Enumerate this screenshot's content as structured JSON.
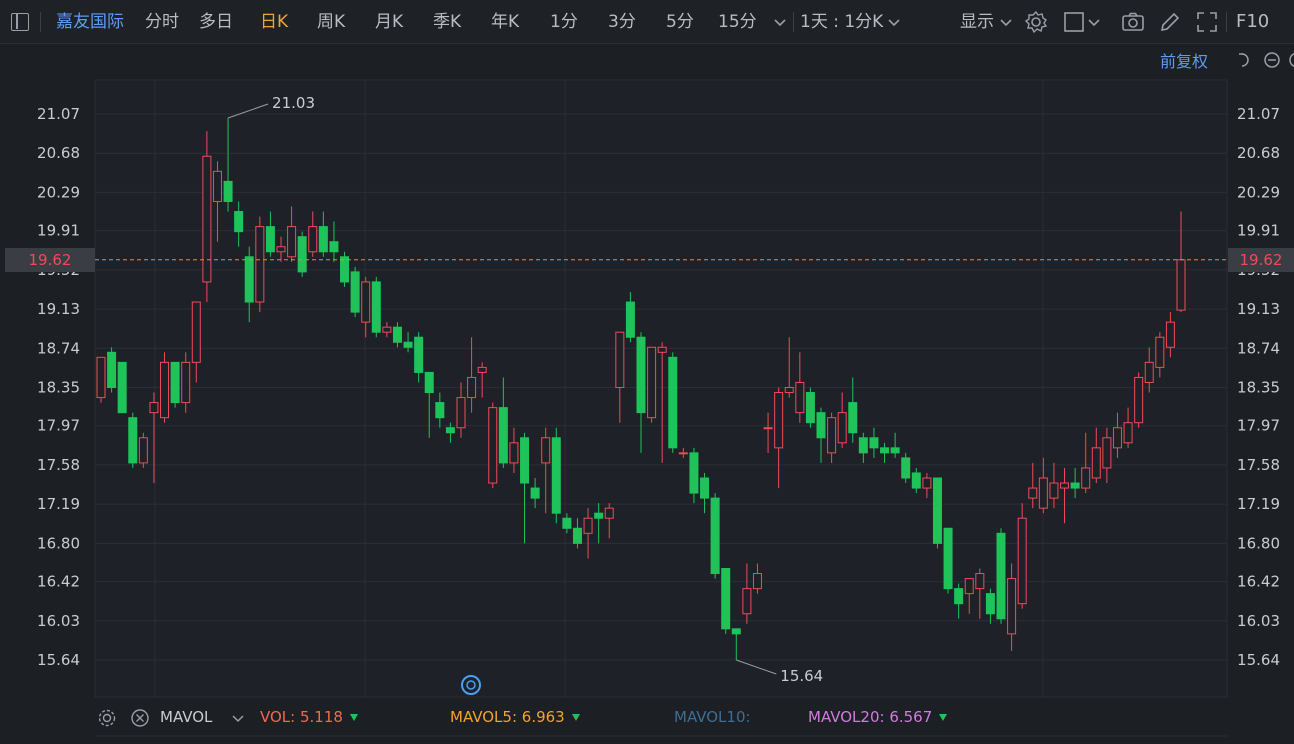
{
  "toolbar": {
    "stock_name": "嘉友国际",
    "tabs": [
      "分时",
      "多日",
      "日K",
      "周K",
      "月K",
      "季K",
      "年K",
      "1分",
      "3分",
      "5分",
      "15分"
    ],
    "active_tab": "日K",
    "period_select": "1天 : 1分K",
    "display_label": "显示",
    "f10_label": "F10"
  },
  "adjust_label": "前复权",
  "chart": {
    "y_ticks": [
      "21.07",
      "20.68",
      "20.29",
      "19.91",
      "19.52",
      "19.13",
      "18.74",
      "18.35",
      "17.97",
      "17.58",
      "17.19",
      "16.80",
      "16.42",
      "16.03",
      "15.64"
    ],
    "current_price": "19.62",
    "high_label": "21.03",
    "low_label": "15.64",
    "colors": {
      "up": "#f24957",
      "down": "#1fc35a",
      "background": "#1c1f24",
      "grid": "#2a2e35"
    }
  },
  "chart_data": {
    "type": "candlestick",
    "y_range": [
      15.45,
      21.25
    ],
    "candles": [
      {
        "o": 18.25,
        "c": 18.65,
        "h": 18.65,
        "l": 18.2
      },
      {
        "o": 18.7,
        "c": 18.35,
        "h": 18.75,
        "l": 18.3
      },
      {
        "o": 18.6,
        "c": 18.1,
        "h": 18.6,
        "l": 18.1
      },
      {
        "o": 18.05,
        "c": 17.6,
        "h": 18.1,
        "l": 17.55
      },
      {
        "o": 17.6,
        "c": 17.85,
        "h": 17.9,
        "l": 17.55
      },
      {
        "o": 18.1,
        "c": 18.2,
        "h": 18.3,
        "l": 17.4
      },
      {
        "o": 18.05,
        "c": 18.6,
        "h": 18.7,
        "l": 18.0
      },
      {
        "o": 18.6,
        "c": 18.2,
        "h": 18.6,
        "l": 18.15
      },
      {
        "o": 18.2,
        "c": 18.6,
        "h": 18.7,
        "l": 18.1
      },
      {
        "o": 18.6,
        "c": 19.2,
        "h": 19.2,
        "l": 18.4
      },
      {
        "o": 19.4,
        "c": 20.65,
        "h": 20.9,
        "l": 19.2
      },
      {
        "o": 20.2,
        "c": 20.5,
        "h": 20.6,
        "l": 19.8
      },
      {
        "o": 20.4,
        "c": 20.2,
        "h": 21.03,
        "l": 20.1
      },
      {
        "o": 20.1,
        "c": 19.9,
        "h": 20.2,
        "l": 19.75
      },
      {
        "o": 19.65,
        "c": 19.2,
        "h": 19.75,
        "l": 19.0
      },
      {
        "o": 19.2,
        "c": 19.95,
        "h": 20.05,
        "l": 19.1
      },
      {
        "o": 19.95,
        "c": 19.7,
        "h": 20.1,
        "l": 19.65
      },
      {
        "o": 19.7,
        "c": 19.75,
        "h": 19.85,
        "l": 19.6
      },
      {
        "o": 19.65,
        "c": 19.95,
        "h": 20.15,
        "l": 19.6
      },
      {
        "o": 19.85,
        "c": 19.5,
        "h": 19.9,
        "l": 19.45
      },
      {
        "o": 19.7,
        "c": 19.95,
        "h": 20.1,
        "l": 19.65
      },
      {
        "o": 19.95,
        "c": 19.7,
        "h": 20.1,
        "l": 19.65
      },
      {
        "o": 19.8,
        "c": 19.7,
        "h": 20.0,
        "l": 19.6
      },
      {
        "o": 19.65,
        "c": 19.4,
        "h": 19.7,
        "l": 19.35
      },
      {
        "o": 19.5,
        "c": 19.1,
        "h": 19.55,
        "l": 19.05
      },
      {
        "o": 19.0,
        "c": 19.4,
        "h": 19.45,
        "l": 18.85
      },
      {
        "o": 19.4,
        "c": 18.9,
        "h": 19.45,
        "l": 18.85
      },
      {
        "o": 18.9,
        "c": 18.95,
        "h": 19.0,
        "l": 18.85
      },
      {
        "o": 18.95,
        "c": 18.8,
        "h": 19.0,
        "l": 18.75
      },
      {
        "o": 18.8,
        "c": 18.75,
        "h": 18.9,
        "l": 18.7
      },
      {
        "o": 18.85,
        "c": 18.5,
        "h": 18.9,
        "l": 18.4
      },
      {
        "o": 18.5,
        "c": 18.3,
        "h": 18.5,
        "l": 17.85
      },
      {
        "o": 18.2,
        "c": 18.05,
        "h": 18.3,
        "l": 17.95
      },
      {
        "o": 17.95,
        "c": 17.9,
        "h": 18.0,
        "l": 17.8
      },
      {
        "o": 17.95,
        "c": 18.25,
        "h": 18.4,
        "l": 17.85
      },
      {
        "o": 18.25,
        "c": 18.45,
        "h": 18.85,
        "l": 18.1
      },
      {
        "o": 18.5,
        "c": 18.55,
        "h": 18.6,
        "l": 18.25
      },
      {
        "o": 17.4,
        "c": 18.15,
        "h": 18.2,
        "l": 17.35
      },
      {
        "o": 18.15,
        "c": 17.6,
        "h": 18.45,
        "l": 17.55
      },
      {
        "o": 17.6,
        "c": 17.8,
        "h": 17.95,
        "l": 17.5
      },
      {
        "o": 17.85,
        "c": 17.4,
        "h": 17.9,
        "l": 16.8
      },
      {
        "o": 17.35,
        "c": 17.25,
        "h": 17.45,
        "l": 17.15
      },
      {
        "o": 17.6,
        "c": 17.85,
        "h": 17.95,
        "l": 17.1
      },
      {
        "o": 17.85,
        "c": 17.1,
        "h": 17.95,
        "l": 17.0
      },
      {
        "o": 17.05,
        "c": 16.95,
        "h": 17.1,
        "l": 16.9
      },
      {
        "o": 16.95,
        "c": 16.8,
        "h": 17.05,
        "l": 16.75
      },
      {
        "o": 16.9,
        "c": 17.05,
        "h": 17.15,
        "l": 16.65
      },
      {
        "o": 17.1,
        "c": 17.05,
        "h": 17.2,
        "l": 16.8
      },
      {
        "o": 17.05,
        "c": 17.15,
        "h": 17.2,
        "l": 16.85
      },
      {
        "o": 18.35,
        "c": 18.9,
        "h": 18.9,
        "l": 18.0
      },
      {
        "o": 19.2,
        "c": 18.85,
        "h": 19.3,
        "l": 18.8
      },
      {
        "o": 18.85,
        "c": 18.1,
        "h": 18.9,
        "l": 17.7
      },
      {
        "o": 18.05,
        "c": 18.75,
        "h": 18.75,
        "l": 18.0
      },
      {
        "o": 18.7,
        "c": 18.75,
        "h": 18.8,
        "l": 17.6
      },
      {
        "o": 18.65,
        "c": 17.75,
        "h": 18.7,
        "l": 17.7
      },
      {
        "o": 17.7,
        "c": 17.7,
        "h": 17.75,
        "l": 17.65
      },
      {
        "o": 17.7,
        "c": 17.3,
        "h": 17.75,
        "l": 17.2
      },
      {
        "o": 17.45,
        "c": 17.25,
        "h": 17.5,
        "l": 17.1
      },
      {
        "o": 17.25,
        "c": 16.5,
        "h": 17.3,
        "l": 16.45
      },
      {
        "o": 16.55,
        "c": 15.95,
        "h": 16.55,
        "l": 15.9
      },
      {
        "o": 15.95,
        "c": 15.9,
        "h": 15.95,
        "l": 15.64
      },
      {
        "o": 16.1,
        "c": 16.35,
        "h": 16.6,
        "l": 16.0
      },
      {
        "o": 16.35,
        "c": 16.5,
        "h": 16.6,
        "l": 16.3
      },
      {
        "o": 17.95,
        "c": 17.95,
        "h": 18.1,
        "l": 17.7
      },
      {
        "o": 17.75,
        "c": 18.3,
        "h": 18.35,
        "l": 17.35
      },
      {
        "o": 18.3,
        "c": 18.35,
        "h": 18.85,
        "l": 18.25
      },
      {
        "o": 18.1,
        "c": 18.4,
        "h": 18.7,
        "l": 18.0
      },
      {
        "o": 18.3,
        "c": 18.0,
        "h": 18.35,
        "l": 17.95
      },
      {
        "o": 18.1,
        "c": 17.85,
        "h": 18.15,
        "l": 17.6
      },
      {
        "o": 17.7,
        "c": 18.05,
        "h": 18.1,
        "l": 17.6
      },
      {
        "o": 17.8,
        "c": 18.1,
        "h": 18.3,
        "l": 17.75
      },
      {
        "o": 18.2,
        "c": 17.9,
        "h": 18.45,
        "l": 17.8
      },
      {
        "o": 17.85,
        "c": 17.7,
        "h": 17.9,
        "l": 17.6
      },
      {
        "o": 17.85,
        "c": 17.75,
        "h": 17.95,
        "l": 17.65
      },
      {
        "o": 17.75,
        "c": 17.7,
        "h": 17.8,
        "l": 17.6
      },
      {
        "o": 17.75,
        "c": 17.7,
        "h": 17.9,
        "l": 17.65
      },
      {
        "o": 17.65,
        "c": 17.45,
        "h": 17.7,
        "l": 17.4
      },
      {
        "o": 17.5,
        "c": 17.35,
        "h": 17.55,
        "l": 17.3
      },
      {
        "o": 17.35,
        "c": 17.45,
        "h": 17.5,
        "l": 17.25
      },
      {
        "o": 17.45,
        "c": 16.8,
        "h": 17.45,
        "l": 16.75
      },
      {
        "o": 16.95,
        "c": 16.35,
        "h": 16.95,
        "l": 16.3
      },
      {
        "o": 16.35,
        "c": 16.2,
        "h": 16.4,
        "l": 16.05
      },
      {
        "o": 16.3,
        "c": 16.45,
        "h": 16.45,
        "l": 16.1
      },
      {
        "o": 16.35,
        "c": 16.5,
        "h": 16.55,
        "l": 16.05
      },
      {
        "o": 16.3,
        "c": 16.1,
        "h": 16.35,
        "l": 16.0
      },
      {
        "o": 16.9,
        "c": 16.05,
        "h": 16.95,
        "l": 16.0
      },
      {
        "o": 15.9,
        "c": 16.45,
        "h": 16.6,
        "l": 15.73
      },
      {
        "o": 16.2,
        "c": 17.05,
        "h": 17.2,
        "l": 16.15
      },
      {
        "o": 17.25,
        "c": 17.35,
        "h": 17.6,
        "l": 17.15
      },
      {
        "o": 17.15,
        "c": 17.45,
        "h": 17.65,
        "l": 17.1
      },
      {
        "o": 17.25,
        "c": 17.4,
        "h": 17.6,
        "l": 17.15
      },
      {
        "o": 17.35,
        "c": 17.4,
        "h": 17.55,
        "l": 17.0
      },
      {
        "o": 17.4,
        "c": 17.35,
        "h": 17.55,
        "l": 17.25
      },
      {
        "o": 17.35,
        "c": 17.55,
        "h": 17.9,
        "l": 17.3
      },
      {
        "o": 17.45,
        "c": 17.75,
        "h": 17.95,
        "l": 17.4
      },
      {
        "o": 17.55,
        "c": 17.85,
        "h": 17.95,
        "l": 17.4
      },
      {
        "o": 17.75,
        "c": 17.95,
        "h": 18.1,
        "l": 17.65
      },
      {
        "o": 17.8,
        "c": 18.0,
        "h": 18.15,
        "l": 17.75
      },
      {
        "o": 18.0,
        "c": 18.45,
        "h": 18.5,
        "l": 17.95
      },
      {
        "o": 18.4,
        "c": 18.6,
        "h": 18.75,
        "l": 18.3
      },
      {
        "o": 18.55,
        "c": 18.85,
        "h": 18.9,
        "l": 18.45
      },
      {
        "o": 18.75,
        "c": 19.0,
        "h": 19.1,
        "l": 18.65
      },
      {
        "o": 19.12,
        "c": 19.62,
        "h": 20.1,
        "l": 19.1
      }
    ]
  },
  "volume_bar": {
    "mavol_label": "MAVOL",
    "vol": "VOL: 5.118",
    "mavol5": "MAVOL5: 6.963",
    "mavol10": "MAVOL10:",
    "mavol20": "MAVOL20: 6.567"
  }
}
